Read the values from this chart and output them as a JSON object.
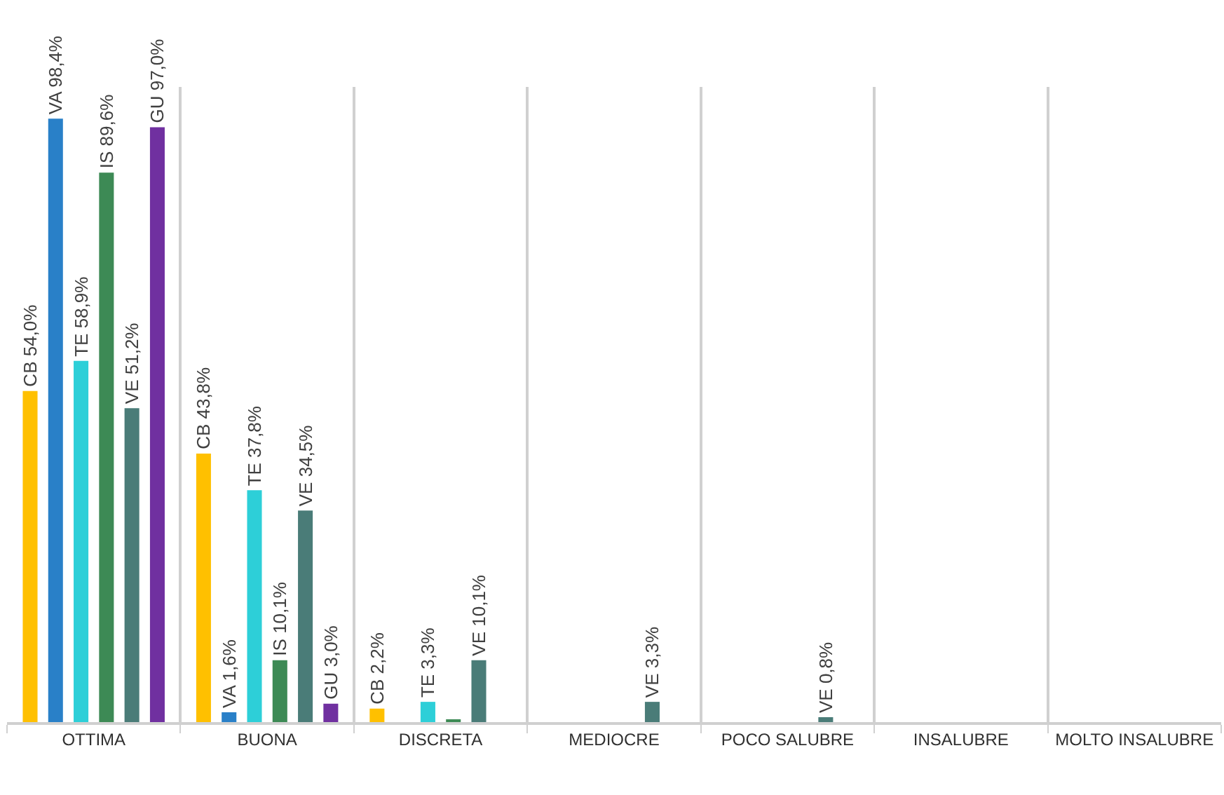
{
  "chart_data": {
    "type": "bar",
    "categories": [
      "OTTIMA",
      "BUONA",
      "DISCRETA",
      "MEDIOCRE",
      "POCO SALUBRE",
      "INSALUBRE",
      "MOLTO INSALUBRE"
    ],
    "series": [
      {
        "color": "#ffc000",
        "values": [
          54.0,
          43.8,
          2.2,
          null,
          null,
          null,
          null
        ],
        "value_labels": [
          "CB 54,0%",
          "CB 43,8%",
          "CB 2,2%",
          null,
          null,
          null,
          null
        ]
      },
      {
        "color": "#2980c8",
        "values": [
          98.4,
          1.6,
          null,
          null,
          null,
          null,
          null
        ],
        "value_labels": [
          "VA 98,4%",
          "VA 1,6%",
          null,
          null,
          null,
          null,
          null
        ]
      },
      {
        "color": "#2dcfd8",
        "values": [
          58.9,
          37.8,
          3.3,
          null,
          null,
          null,
          null
        ],
        "value_labels": [
          "TE 58,9%",
          "TE 37,8%",
          "TE 3,3%",
          null,
          null,
          null,
          null
        ]
      },
      {
        "color": "#3d8a55",
        "values": [
          89.6,
          10.1,
          0.4,
          null,
          null,
          null,
          null
        ],
        "value_labels": [
          "IS 89,6%",
          "IS 10,1%",
          null,
          null,
          null,
          null,
          null
        ]
      },
      {
        "color": "#4a7c78",
        "values": [
          51.2,
          34.5,
          10.1,
          3.3,
          0.8,
          null,
          null
        ],
        "value_labels": [
          "VE 51,2%",
          "VE 34,5%",
          "VE 10,1%",
          "VE 3,3%",
          "VE 0,8%",
          null,
          null
        ]
      },
      {
        "color": "#7030a0",
        "values": [
          97.0,
          3.0,
          null,
          null,
          null,
          null,
          null
        ],
        "value_labels": [
          "GU 97,0%",
          "GU 3,0%",
          null,
          null,
          null,
          null,
          null
        ]
      }
    ],
    "grid": "x",
    "legend": false
  }
}
